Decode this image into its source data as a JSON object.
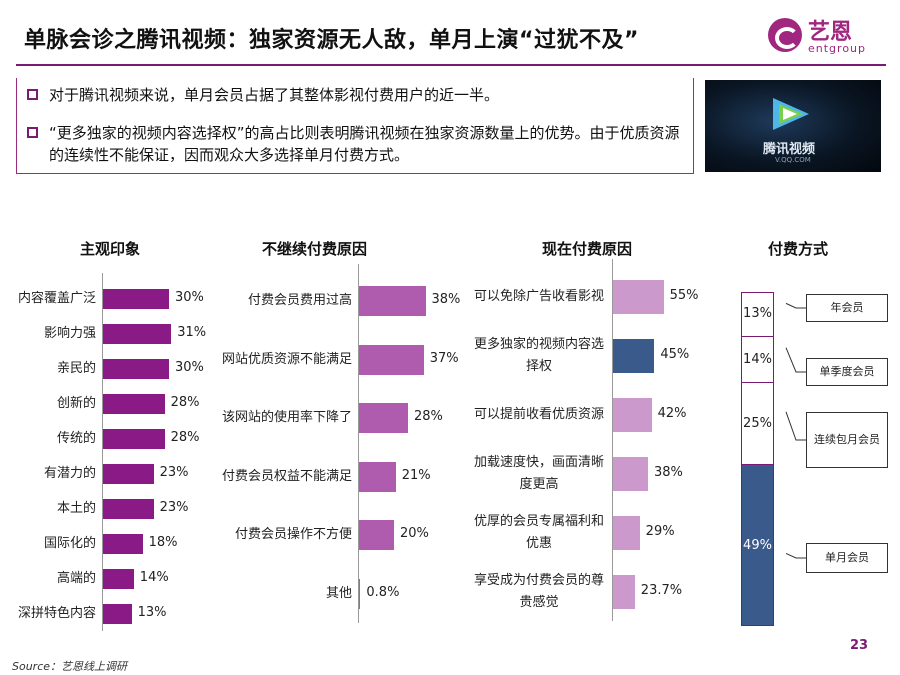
{
  "title": "单脉会诊之腾讯视频：独家资源无人敌，单月上演“过犹不及”",
  "logo": {
    "cn": "艺恩",
    "en": "entgroup"
  },
  "bullets": [
    "对于腾讯视频来说，单月会员占据了其整体影视付费用户的近一半。",
    "“更多独家的视频内容选择权”的高占比则表明腾讯视频在独家资源数量上的优势。由于优质资源的连续性不能保证，因而观众大多选择单月付费方式。"
  ],
  "photo": {
    "brand": "腾讯视频",
    "url": "V.QQ.COM"
  },
  "colors": {
    "purple": "#8a1a86",
    "purple_mid": "#b05cae",
    "lilac": "#cc99cc",
    "navy": "#3b5a8c"
  },
  "chart_data": [
    {
      "type": "bar",
      "orientation": "horizontal",
      "title": "主观印象",
      "categories": [
        "内容覆盖广泛",
        "影响力强",
        "亲民的",
        "创新的",
        "传统的",
        "有潜力的",
        "本土的",
        "国际化的",
        "高端的",
        "深拼特色内容"
      ],
      "values": [
        30,
        31,
        30,
        28,
        28,
        23,
        23,
        18,
        14,
        13
      ],
      "value_labels": [
        "30%",
        "31%",
        "30%",
        "28%",
        "28%",
        "23%",
        "23%",
        "18%",
        "14%",
        "13%"
      ],
      "unit": "%",
      "color": "#8a1a86"
    },
    {
      "type": "bar",
      "orientation": "horizontal",
      "title": "不继续付费原因",
      "categories": [
        "付费会员费用过高",
        "网站优质资源不能满足",
        "该网站的使用率下降了",
        "付费会员权益不能满足",
        "付费会员操作不方便",
        "其他"
      ],
      "values": [
        38,
        37,
        28,
        21,
        20,
        0.8
      ],
      "value_labels": [
        "38%",
        "37%",
        "28%",
        "21%",
        "20%",
        "0.8%"
      ],
      "unit": "%",
      "color": "#b05cae"
    },
    {
      "type": "bar",
      "orientation": "horizontal",
      "title": "现在付费原因",
      "categories": [
        "可以免除广告收看影视",
        "更多独家的视频内容选择权",
        "可以提前收看优质资源",
        "加载速度快，画面清晰度更高",
        "优厚的会员专属福利和优惠",
        "享受成为付费会员的尊贵感觉"
      ],
      "values": [
        55,
        45,
        42,
        38,
        29,
        23.7
      ],
      "value_labels": [
        "55%",
        "45%",
        "42%",
        "38%",
        "29%",
        "23.7%"
      ],
      "highlight_index": 1,
      "unit": "%",
      "color": "#cc99cc",
      "highlight_color": "#3b5a8c"
    },
    {
      "type": "bar",
      "stacked": true,
      "title": "付费方式",
      "categories": [
        "年会员",
        "单季度会员",
        "连续包月会员",
        "单月会员"
      ],
      "values": [
        13,
        14,
        25,
        49
      ],
      "value_labels": [
        "13%",
        "14%",
        "25%",
        "49%"
      ],
      "unit": "%",
      "highlight_index": 3,
      "highlight_color": "#3b5a8c"
    }
  ],
  "page_number": "23",
  "source": "Source：艺恩线上调研"
}
